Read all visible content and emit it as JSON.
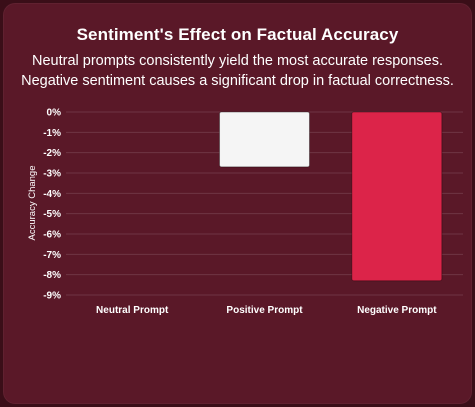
{
  "chart_data": {
    "type": "bar",
    "title": "Sentiment's Effect on Factual Accuracy",
    "subtitle_lines": [
      "Neutral prompts consistently yield the most accurate responses.",
      "Negative sentiment causes a significant drop in factual correctness."
    ],
    "xlabel": "",
    "ylabel": "Accuracy Change",
    "categories": [
      "Neutral Prompt",
      "Positive Prompt",
      "Negative Prompt"
    ],
    "values": [
      0,
      -2.7,
      -8.3
    ],
    "bar_colors": [
      "#f5f5f5",
      "#f5f5f5",
      "#dc2449"
    ],
    "ylim": [
      -9,
      0
    ],
    "y_ticks": [
      "0%",
      "-1%",
      "-2%",
      "-3%",
      "-4%",
      "-5%",
      "-6%",
      "-7%",
      "-8%",
      "-9%"
    ],
    "grid": true,
    "legend": "none"
  },
  "colors": {
    "background": "#3a0e18",
    "card": "#5a1828",
    "text": "#ffffff",
    "grid": "rgba(255,255,255,0.13)",
    "accent": "#dc2449"
  }
}
